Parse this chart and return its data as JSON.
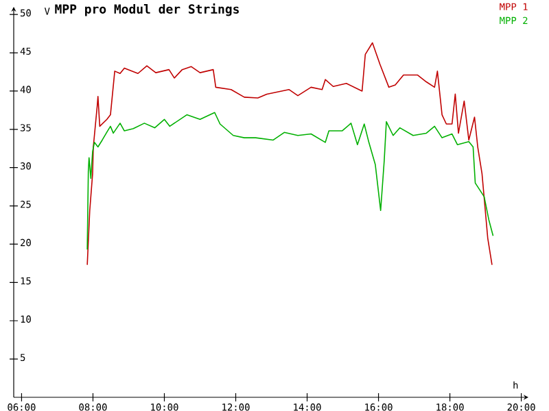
{
  "chart_data": {
    "type": "line",
    "title": "MPP pro Modul der Strings",
    "xlabel": "h",
    "ylabel": "V",
    "xlim": [
      5.78,
      20.2
    ],
    "ylim": [
      0,
      51
    ],
    "xticks": [
      {
        "value": 6,
        "label": "06:00"
      },
      {
        "value": 8,
        "label": "08:00"
      },
      {
        "value": 10,
        "label": "10:00"
      },
      {
        "value": 12,
        "label": "12:00"
      },
      {
        "value": 14,
        "label": "14:00"
      },
      {
        "value": 16,
        "label": "16:00"
      },
      {
        "value": 18,
        "label": "18:00"
      },
      {
        "value": 20,
        "label": "20:00"
      }
    ],
    "yticks": [
      5,
      10,
      15,
      20,
      25,
      30,
      35,
      40,
      45,
      50
    ],
    "marker": "none",
    "grid": false,
    "series": [
      {
        "name": "MPP 1",
        "color": "#c00000",
        "x": [
          7.84,
          7.91,
          7.99,
          8.01,
          8.12,
          8.14,
          8.19,
          8.39,
          8.49,
          8.61,
          8.76,
          8.88,
          9.26,
          9.51,
          9.76,
          10.13,
          10.28,
          10.5,
          10.75,
          11.0,
          11.37,
          11.44,
          11.87,
          12.24,
          12.62,
          12.87,
          13.49,
          13.74,
          14.11,
          14.42,
          14.51,
          14.73,
          15.1,
          15.54,
          15.63,
          15.83,
          16.04,
          16.29,
          16.47,
          16.7,
          17.09,
          17.34,
          17.57,
          17.65,
          17.78,
          17.9,
          18.06,
          18.15,
          18.24,
          18.4,
          18.53,
          18.69,
          18.78,
          18.9,
          19.06,
          19.18
        ],
        "values": [
          17.3,
          24.4,
          29.2,
          32.7,
          38.1,
          39.3,
          35.4,
          36.3,
          36.9,
          42.6,
          42.3,
          43.0,
          42.3,
          43.3,
          42.4,
          42.8,
          41.7,
          42.8,
          43.2,
          42.4,
          42.8,
          40.5,
          40.2,
          39.2,
          39.1,
          39.6,
          40.2,
          39.4,
          40.5,
          40.2,
          41.5,
          40.6,
          41.0,
          40.0,
          44.8,
          46.3,
          43.5,
          40.5,
          40.8,
          42.1,
          42.1,
          41.2,
          40.5,
          42.6,
          36.9,
          35.7,
          35.7,
          39.6,
          34.5,
          38.7,
          33.6,
          36.6,
          32.7,
          29.2,
          20.8,
          17.3
        ]
      },
      {
        "name": "MPP 2",
        "color": "#00b000",
        "x": [
          7.84,
          7.87,
          7.89,
          7.94,
          7.99,
          8.04,
          8.14,
          8.26,
          8.41,
          8.49,
          8.57,
          8.76,
          8.88,
          9.13,
          9.44,
          9.73,
          10.0,
          10.15,
          10.63,
          11.0,
          11.41,
          11.56,
          11.93,
          12.24,
          12.56,
          13.05,
          13.36,
          13.74,
          14.11,
          14.51,
          14.61,
          14.98,
          15.23,
          15.41,
          15.6,
          15.73,
          15.91,
          16.06,
          16.16,
          16.22,
          16.41,
          16.6,
          16.97,
          17.34,
          17.57,
          17.78,
          18.06,
          18.21,
          18.53,
          18.65,
          18.71,
          18.96,
          19.09,
          19.21
        ],
        "values": [
          19.3,
          29.5,
          31.3,
          28.6,
          32.1,
          33.3,
          32.7,
          33.6,
          34.8,
          35.4,
          34.5,
          35.8,
          34.8,
          35.1,
          35.8,
          35.2,
          36.3,
          35.4,
          36.9,
          36.3,
          37.2,
          35.7,
          34.2,
          33.9,
          33.9,
          33.6,
          34.6,
          34.2,
          34.4,
          33.3,
          34.8,
          34.8,
          35.8,
          33.0,
          35.7,
          33.3,
          30.4,
          24.4,
          30.9,
          36.0,
          34.2,
          35.2,
          34.2,
          34.5,
          35.4,
          33.9,
          34.4,
          33.0,
          33.4,
          32.7,
          28.0,
          26.2,
          23.2,
          21.1
        ]
      }
    ]
  }
}
